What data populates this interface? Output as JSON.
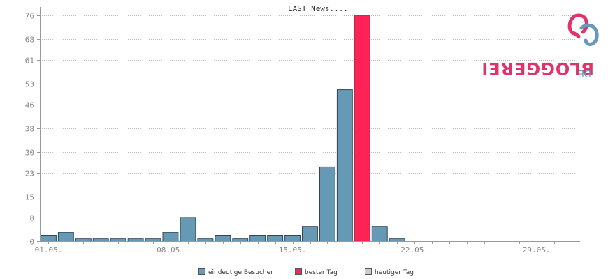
{
  "chart_data": {
    "type": "bar",
    "title": "LAST News....",
    "yticks": [
      "0",
      "8",
      "15",
      "23",
      "30",
      "38",
      "46",
      "53",
      "61",
      "68",
      "76"
    ],
    "ylim": [
      0,
      76
    ],
    "xtick_labels": [
      "01.05.",
      "08.05.",
      "15.05.",
      "22.05.",
      "29.05."
    ],
    "xtick_days": [
      1,
      8,
      15,
      22,
      29
    ],
    "days": [
      1,
      2,
      3,
      4,
      5,
      6,
      7,
      8,
      9,
      10,
      11,
      12,
      13,
      14,
      15,
      16,
      17,
      18,
      19,
      20,
      21,
      22,
      23,
      24,
      25,
      26,
      27,
      28,
      29,
      30,
      31
    ],
    "values": [
      2,
      3,
      1,
      1,
      1,
      1,
      1,
      3,
      8,
      1,
      2,
      1,
      2,
      2,
      2,
      5,
      25,
      51,
      76,
      5,
      1,
      0,
      0,
      0,
      0,
      0,
      0,
      0,
      0,
      0,
      0
    ],
    "best_day": 19,
    "series": [
      {
        "name": "eindeutige Besucher",
        "color": "#6699b4"
      },
      {
        "name": "bester Tag",
        "color": "#ff2255"
      },
      {
        "name": "heutiger Tag",
        "color": "#cccccc"
      }
    ],
    "grid": true,
    "legend_position": "bottom"
  },
  "logo": {
    "brand": "BLOGGEREI",
    "suffix": ".DE",
    "colors": {
      "primary": "#e0336b",
      "secondary": "#6699bb"
    }
  }
}
